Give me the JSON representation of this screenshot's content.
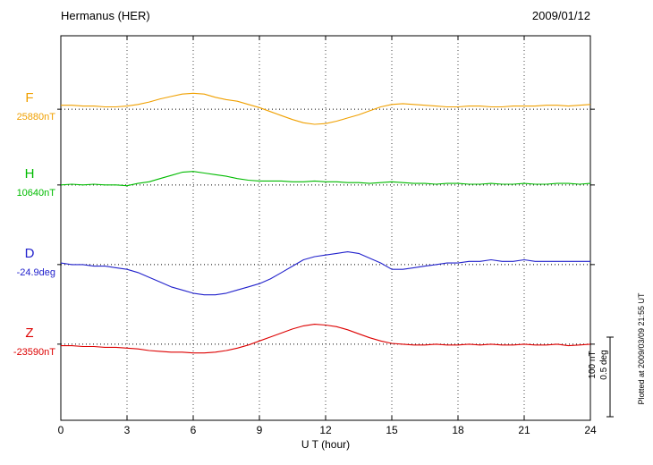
{
  "header": {
    "station": "Hermanus (HER)",
    "date": "2009/01/12"
  },
  "axis": {
    "xlabel": "U T (hour)"
  },
  "scale_bar_labels": {
    "nt": "100 nT",
    "deg": "0.5 deg"
  },
  "side_note": "Plotted at 2009/03/09 21:55 UT",
  "chart_data": {
    "type": "line",
    "title": "Hermanus (HER) magnetogram 2009/01/12",
    "xlabel": "U T (hour)",
    "x_range": [
      0,
      24
    ],
    "x_ticks": [
      0,
      3,
      6,
      9,
      12,
      15,
      18,
      21,
      24
    ],
    "grid": "dotted vertical lines every 3 h; dotted horizontal line at each trace baseline",
    "legend_position": "left of each trace",
    "scale_bar": {
      "nT_per_bar": 100,
      "deg_per_bar": 0.5
    },
    "x_hours": [
      0,
      0.5,
      1,
      1.5,
      2,
      2.5,
      3,
      3.5,
      4,
      4.5,
      5,
      5.5,
      6,
      6.5,
      7,
      7.5,
      8,
      8.5,
      9,
      9.5,
      10,
      10.5,
      11,
      11.5,
      12,
      12.5,
      13,
      13.5,
      14,
      14.5,
      15,
      15.5,
      16,
      16.5,
      17,
      17.5,
      18,
      18.5,
      19,
      19.5,
      20,
      20.5,
      21,
      21.5,
      22,
      22.5,
      23,
      23.5,
      24
    ],
    "series": [
      {
        "name": "F",
        "baseline_label": "25880nT",
        "unit": "nT",
        "color": "#f0a000",
        "baseline_frac": 0.191,
        "offsets": [
          5,
          5,
          4,
          4,
          3,
          3,
          4,
          6,
          9,
          13,
          16,
          19,
          20,
          19,
          15,
          12,
          10,
          6,
          2,
          -3,
          -8,
          -13,
          -17,
          -19,
          -18,
          -15,
          -11,
          -7,
          -2,
          3,
          6,
          7,
          6,
          5,
          4,
          3,
          3,
          4,
          4,
          3,
          3,
          4,
          4,
          4,
          5,
          5,
          4,
          5,
          6
        ]
      },
      {
        "name": "H",
        "baseline_label": "10640nT",
        "unit": "nT",
        "color": "#00bb00",
        "baseline_frac": 0.388,
        "offsets": [
          0,
          1,
          0,
          1,
          0,
          0,
          -1,
          2,
          4,
          8,
          12,
          16,
          17,
          15,
          13,
          11,
          8,
          6,
          5,
          5,
          5,
          4,
          4,
          5,
          4,
          4,
          3,
          3,
          2,
          3,
          4,
          3,
          2,
          2,
          1,
          2,
          2,
          1,
          1,
          2,
          1,
          1,
          2,
          1,
          1,
          2,
          2,
          1,
          2
        ]
      },
      {
        "name": "D",
        "baseline_label": "-24.9deg",
        "unit": "deg",
        "color": "#2222cc",
        "baseline_frac": 0.595,
        "offsets": [
          0.01,
          0,
          0,
          -0.01,
          -0.01,
          -0.02,
          -0.03,
          -0.05,
          -0.08,
          -0.11,
          -0.14,
          -0.16,
          -0.18,
          -0.19,
          -0.19,
          -0.18,
          -0.16,
          -0.14,
          -0.12,
          -0.09,
          -0.05,
          -0.01,
          0.03,
          0.05,
          0.06,
          0.07,
          0.08,
          0.07,
          0.04,
          0.01,
          -0.03,
          -0.03,
          -0.02,
          -0.01,
          0,
          0.01,
          0.01,
          0.02,
          0.02,
          0.03,
          0.02,
          0.02,
          0.03,
          0.02,
          0.02,
          0.02,
          0.02,
          0.02,
          0.02
        ]
      },
      {
        "name": "Z",
        "baseline_label": "-23590nT",
        "unit": "nT",
        "color": "#dd0000",
        "baseline_frac": 0.802,
        "offsets": [
          -2,
          -2,
          -3,
          -3,
          -4,
          -4,
          -5,
          -6,
          -8,
          -9,
          -10,
          -10,
          -11,
          -11,
          -10,
          -8,
          -5,
          -1,
          4,
          9,
          14,
          19,
          23,
          25,
          24,
          22,
          18,
          13,
          8,
          4,
          1,
          0,
          -1,
          -1,
          0,
          -1,
          -1,
          0,
          -1,
          0,
          -1,
          -1,
          0,
          -1,
          -1,
          0,
          -2,
          -1,
          0
        ]
      }
    ]
  }
}
